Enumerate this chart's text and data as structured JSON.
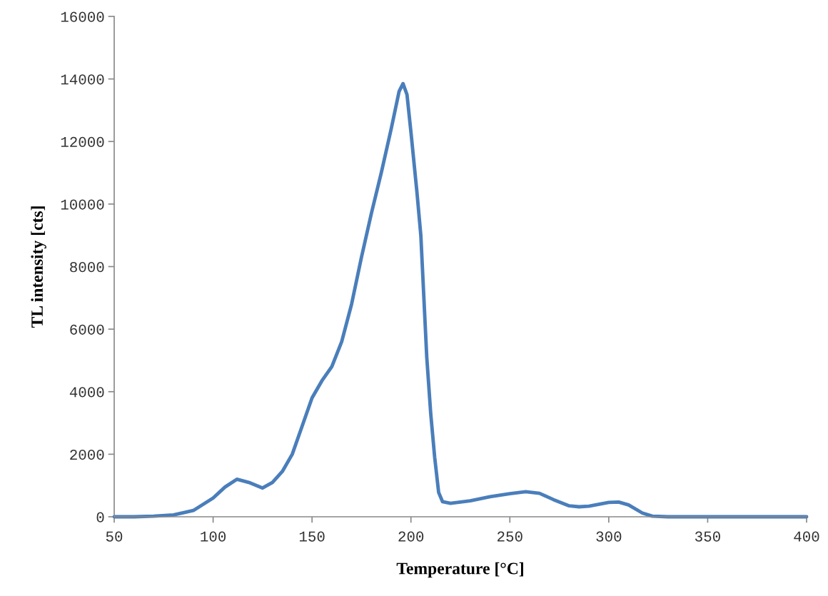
{
  "chart_data": {
    "type": "line",
    "xlabel": "Temperature [°C]",
    "ylabel": "TL intensity [cts]",
    "x": [
      50,
      60,
      70,
      80,
      90,
      100,
      106,
      112,
      118,
      125,
      130,
      135,
      140,
      145,
      150,
      155,
      160,
      165,
      170,
      175,
      180,
      185,
      190,
      194,
      196,
      198,
      200,
      203,
      205,
      208,
      210,
      212,
      214,
      216,
      220,
      225,
      230,
      240,
      250,
      258,
      265,
      272,
      280,
      285,
      290,
      300,
      305,
      310,
      317,
      322,
      330,
      350,
      400
    ],
    "series": [
      {
        "color": "#4a7ebb",
        "values": [
          0,
          0,
          20,
          60,
          200,
          600,
          950,
          1200,
          1100,
          920,
          1100,
          1450,
          2000,
          2900,
          3800,
          4350,
          4800,
          5600,
          6800,
          8300,
          9700,
          11000,
          12400,
          13600,
          13850,
          13500,
          12300,
          10400,
          9000,
          5100,
          3300,
          1900,
          780,
          480,
          430,
          470,
          510,
          640,
          740,
          800,
          750,
          550,
          350,
          320,
          340,
          460,
          470,
          380,
          120,
          20,
          0,
          0,
          0
        ]
      }
    ],
    "xlim": [
      50,
      400
    ],
    "xticks": [
      50,
      100,
      150,
      200,
      250,
      300,
      350,
      400
    ],
    "ylim": [
      0,
      16000
    ],
    "yticks": [
      0,
      2000,
      4000,
      6000,
      8000,
      10000,
      12000,
      14000,
      16000
    ],
    "grid": false,
    "marker": "none",
    "line_style": "solid"
  }
}
